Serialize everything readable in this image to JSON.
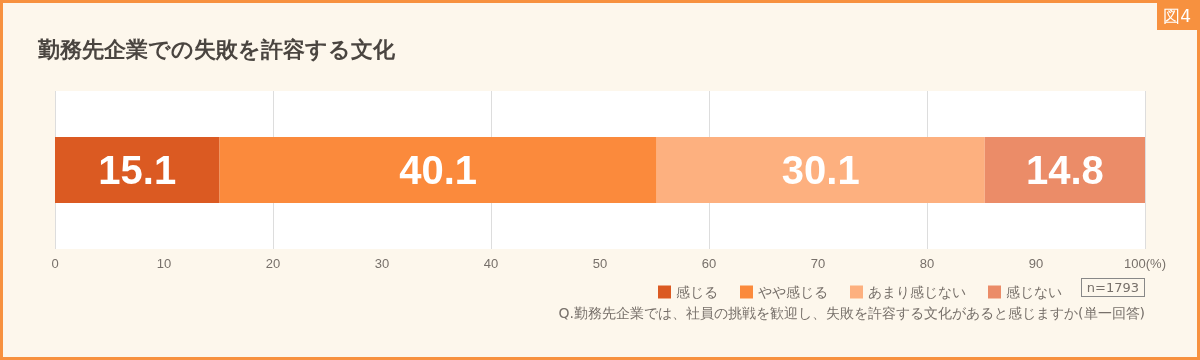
{
  "chart_data": {
    "type": "bar",
    "title": "勤務先企業での失敗を許容する文化",
    "orientation": "horizontal",
    "stacked": true,
    "categories": [
      null
    ],
    "series": [
      {
        "name": "感じる",
        "color": "#db5a22",
        "values": [
          15.1
        ]
      },
      {
        "name": "やや感じる",
        "color": "#fb8a3c",
        "values": [
          40.1
        ]
      },
      {
        "name": "あまり感じない",
        "color": "#fdb07f",
        "values": [
          30.1
        ]
      },
      {
        "name": "感じない",
        "color": "#eb8c68",
        "values": [
          14.8
        ]
      }
    ],
    "xlim": [
      0,
      100
    ],
    "xticks": [
      0,
      10,
      20,
      30,
      40,
      50,
      60,
      70,
      80,
      90,
      {
        "value": 100,
        "label": "100(%)"
      }
    ],
    "grid": "x",
    "legend": "bottom right",
    "data_labels": true,
    "annotations": [
      "図4",
      "n=1793",
      "Q.勤務先企業では、社員の挑戦を歓迎し、失敗を許容する文化があると感じますか(単一回答)"
    ]
  }
}
